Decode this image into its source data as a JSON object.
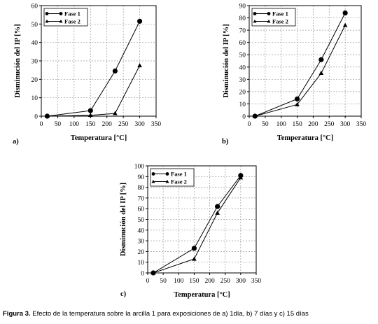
{
  "caption": {
    "label": "Figura 3.",
    "text": " Efecto de la temperatura sobre la arcilla 1 para exposiciones de a) 1día, b) 7 días y c) 15 días"
  },
  "chart_data": [
    {
      "type": "line",
      "panel_label": "a)",
      "xlabel": "Temperatura [°C]",
      "ylabel": "Disminución del IP [%]",
      "xlim": [
        0,
        350
      ],
      "ylim": [
        0,
        60
      ],
      "xticks": [
        0,
        50,
        100,
        150,
        200,
        250,
        300,
        350
      ],
      "yticks": [
        0,
        10,
        20,
        30,
        40,
        50,
        60
      ],
      "grid": true,
      "legend_position": "top-left",
      "series": [
        {
          "name": "Fase 1",
          "marker": "circle",
          "x": [
            18,
            150,
            225,
            300
          ],
          "y": [
            0,
            3,
            24.5,
            51.5
          ]
        },
        {
          "name": "Fase 2",
          "marker": "triangle",
          "x": [
            18,
            150,
            225,
            300
          ],
          "y": [
            0,
            0.5,
            1.5,
            27.5
          ]
        }
      ]
    },
    {
      "type": "line",
      "panel_label": "b)",
      "xlabel": "Temperatura [°C]",
      "ylabel": "Disminución del IP [%]",
      "xlim": [
        0,
        350
      ],
      "ylim": [
        0,
        90
      ],
      "xticks": [
        0,
        50,
        100,
        150,
        200,
        250,
        300,
        350
      ],
      "yticks": [
        0,
        10,
        20,
        30,
        40,
        50,
        60,
        70,
        80,
        90
      ],
      "grid": true,
      "legend_position": "top-left",
      "series": [
        {
          "name": "Fase 1",
          "marker": "circle",
          "x": [
            18,
            150,
            225,
            300
          ],
          "y": [
            0,
            14,
            46,
            84
          ]
        },
        {
          "name": "Fase 2",
          "marker": "triangle",
          "x": [
            18,
            150,
            225,
            300
          ],
          "y": [
            0,
            9.5,
            35,
            74
          ]
        }
      ]
    },
    {
      "type": "line",
      "panel_label": "c)",
      "xlabel": "Temperatura [°C]",
      "ylabel": "Disminución del IP [%]",
      "xlim": [
        0,
        350
      ],
      "ylim": [
        0,
        100
      ],
      "xticks": [
        0,
        50,
        100,
        150,
        200,
        250,
        300,
        350
      ],
      "yticks": [
        0,
        10,
        20,
        30,
        40,
        50,
        60,
        70,
        80,
        90,
        100
      ],
      "grid": true,
      "legend_position": "top-left",
      "series": [
        {
          "name": "Fase 1",
          "marker": "circle",
          "x": [
            18,
            150,
            225,
            300
          ],
          "y": [
            0,
            23,
            62,
            91
          ]
        },
        {
          "name": "Fase 2",
          "marker": "triangle",
          "x": [
            18,
            150,
            225,
            300
          ],
          "y": [
            0,
            13,
            56,
            89
          ]
        }
      ]
    }
  ]
}
